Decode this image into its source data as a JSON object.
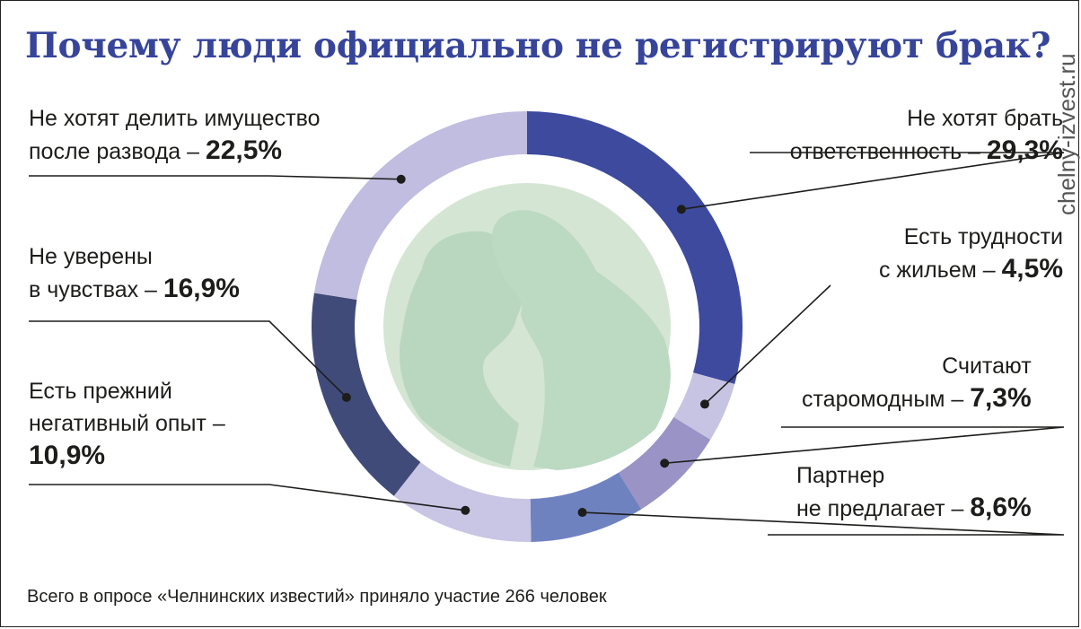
{
  "title": "Почему люди официально не регистрируют брак?",
  "watermark": "chelny-izvest.ru",
  "footer": "Всего в опросе «Челнинских известий» приняло участие 266 человек",
  "chart_data": {
    "type": "pie",
    "title": "Почему люди официально не регистрируют брак?",
    "slices": [
      {
        "label_lines": [
          "Не хотят брать",
          "ответственность –"
        ],
        "value_text": "29,3%",
        "value": 29.3,
        "color": "#3d4a9e"
      },
      {
        "label_lines": [
          "Есть трудности",
          "с жильем –"
        ],
        "value_text": "4,5%",
        "value": 4.5,
        "color": "#c7c4e3"
      },
      {
        "label_lines": [
          "Считают",
          "старомодным –"
        ],
        "value_text": "7,3%",
        "value": 7.3,
        "color": "#9a93c6"
      },
      {
        "label_lines": [
          "Партнер",
          "не предлагает –"
        ],
        "value_text": "8,6%",
        "value": 8.6,
        "color": "#6f82c0"
      },
      {
        "label_lines": [
          "Есть прежний",
          "негативный опыт –"
        ],
        "value_text": "10,9%",
        "value": 10.9,
        "color": "#c9c5e4"
      },
      {
        "label_lines": [
          "Не уверены",
          "в чувствах –"
        ],
        "value_text": "16,9%",
        "value": 16.9,
        "color": "#414b79"
      },
      {
        "label_lines": [
          "Не хотят делить имущество",
          "после развода –"
        ],
        "value_text": "22,5%",
        "value": 22.5,
        "color": "#c1bde0"
      }
    ]
  }
}
